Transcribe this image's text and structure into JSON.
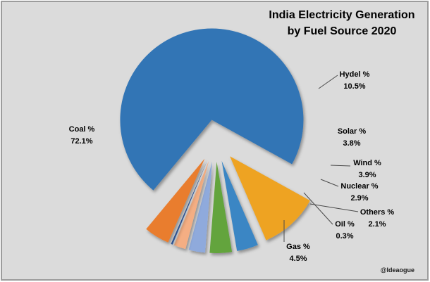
{
  "frame": {
    "background_color": "#dbdbdb",
    "border_color": "#9c9c9c"
  },
  "title": {
    "line1": "India Electricity Generation",
    "line2": "by Fuel Source 2020"
  },
  "watermark": "@Ideaogue",
  "chart_data": {
    "type": "pie",
    "title": "India Electricity Generation by Fuel Source 2020",
    "unit": "percent",
    "exploded": true,
    "labels_style": "outside, bold, name + percent on two lines, leader lines to small slices",
    "legend": "none",
    "gap_orientation": "small slices fan out to the right (gap centered at 3 o'clock)",
    "slices": [
      {
        "name": "Coal",
        "label": "Coal %",
        "value": 72.1,
        "display": "72.1%",
        "color": "#3174b5"
      },
      {
        "name": "Hydel",
        "label": "Hydel %",
        "value": 10.5,
        "display": "10.5%",
        "color": "#eea320"
      },
      {
        "name": "Solar",
        "label": "Solar %",
        "value": 3.8,
        "display": "3.8%",
        "color": "#3a86c4"
      },
      {
        "name": "Wind",
        "label": "Wind %",
        "value": 3.9,
        "display": "3.9%",
        "color": "#63a43c"
      },
      {
        "name": "Nuclear",
        "label": "Nuclear %",
        "value": 2.9,
        "display": "2.9%",
        "color": "#8faadc"
      },
      {
        "name": "Others",
        "label": "Others %",
        "value": 2.1,
        "display": "2.1%",
        "color": "#f4ae83"
      },
      {
        "name": "Oil",
        "label": "Oil %",
        "value": 0.3,
        "display": "0.3%",
        "color": "#2f5597"
      },
      {
        "name": "Gas",
        "label": "Gas %",
        "value": 4.5,
        "display": "4.5%",
        "color": "#e97d2e"
      }
    ]
  }
}
